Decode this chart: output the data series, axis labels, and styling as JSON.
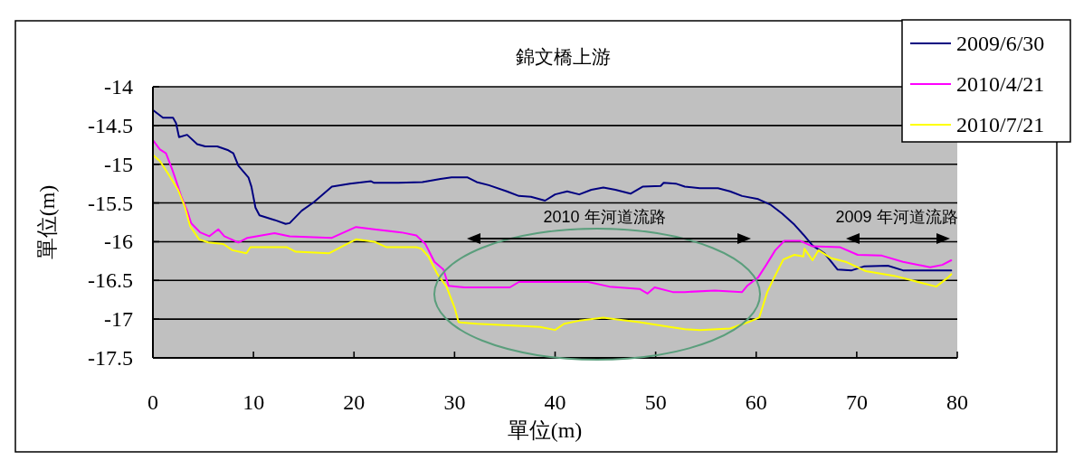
{
  "chart_data": {
    "type": "line",
    "title": "錦文橋上游",
    "xlabel": "單位(m)",
    "ylabel": "單位(m)",
    "xlim": [
      0,
      80
    ],
    "xticks": [
      0,
      10,
      20,
      30,
      40,
      50,
      60,
      70,
      80
    ],
    "ylim": [
      -17.5,
      -14
    ],
    "yticks": [
      -17.5,
      -17,
      -16.5,
      -16,
      -15.5,
      -15,
      -14.5,
      -14
    ],
    "grid": "y",
    "legend": "top right",
    "line_style": "solid",
    "series": [
      {
        "name": "2009/6/30",
        "color": "#000080",
        "x": [
          0,
          1.0,
          2.0,
          2.3,
          2.6,
          3.4,
          4.4,
          5.2,
          6.4,
          7.5,
          8.0,
          8.5,
          9.5,
          9.8,
          10.2,
          10.6,
          12.1,
          13.2,
          13.6,
          14.8,
          16.0,
          17.8,
          19.6,
          21.7,
          22.0,
          24.4,
          26.8,
          28.6,
          29.7,
          31.3,
          32.2,
          33.4,
          35.2,
          36.4,
          37.6,
          39.0,
          40.0,
          41.2,
          42.4,
          43.6,
          44.8,
          46.0,
          47.5,
          48.7,
          50.5,
          50.8,
          52.0,
          52.9,
          54.4,
          56.2,
          57.4,
          58.6,
          60.2,
          61.4,
          62.6,
          63.8,
          64.7,
          65.6,
          66.8,
          68.1,
          69.5,
          70.7,
          73.1,
          74.6,
          79.4
        ],
        "values": [
          -14.3,
          -14.4,
          -14.4,
          -14.47,
          -14.65,
          -14.62,
          -14.74,
          -14.77,
          -14.77,
          -14.82,
          -14.86,
          -15.02,
          -15.17,
          -15.29,
          -15.56,
          -15.66,
          -15.72,
          -15.77,
          -15.76,
          -15.6,
          -15.49,
          -15.29,
          -15.25,
          -15.22,
          -15.24,
          -15.24,
          -15.23,
          -15.19,
          -15.17,
          -15.17,
          -15.23,
          -15.27,
          -15.35,
          -15.41,
          -15.42,
          -15.47,
          -15.39,
          -15.35,
          -15.39,
          -15.33,
          -15.3,
          -15.33,
          -15.38,
          -15.29,
          -15.28,
          -15.24,
          -15.25,
          -15.29,
          -15.31,
          -15.31,
          -15.35,
          -15.41,
          -15.45,
          -15.52,
          -15.64,
          -15.78,
          -15.91,
          -16.05,
          -16.15,
          -16.36,
          -16.37,
          -16.32,
          -16.31,
          -16.37,
          -16.37
        ]
      },
      {
        "name": "2010/4/21",
        "color": "#ff00ff",
        "x": [
          0,
          0.7,
          1.3,
          1.9,
          2.3,
          2.8,
          3.4,
          3.8,
          4.7,
          5.6,
          6.5,
          7.1,
          8.5,
          9.4,
          12.1,
          13.6,
          17.8,
          19.0,
          20.2,
          22.0,
          24.7,
          26.2,
          27.1,
          28.0,
          28.9,
          29.4,
          31.0,
          35.5,
          36.4,
          43.3,
          45.4,
          48.4,
          49.2,
          49.9,
          51.7,
          52.9,
          55.9,
          58.6,
          59.1,
          60.2,
          61.0,
          61.9,
          62.8,
          64.4,
          65.6,
          68.3,
          70.1,
          72.5,
          74.6,
          77.3,
          78.5,
          79.4
        ],
        "values": [
          -14.69,
          -14.81,
          -14.86,
          -15.06,
          -15.21,
          -15.41,
          -15.6,
          -15.76,
          -15.88,
          -15.93,
          -15.84,
          -15.93,
          -16.01,
          -15.95,
          -15.89,
          -15.93,
          -15.95,
          -15.88,
          -15.81,
          -15.84,
          -15.88,
          -15.92,
          -16.03,
          -16.26,
          -16.36,
          -16.57,
          -16.59,
          -16.59,
          -16.52,
          -16.52,
          -16.58,
          -16.61,
          -16.67,
          -16.59,
          -16.65,
          -16.65,
          -16.63,
          -16.65,
          -16.57,
          -16.46,
          -16.3,
          -16.11,
          -15.99,
          -15.99,
          -16.06,
          -16.07,
          -16.17,
          -16.18,
          -16.26,
          -16.33,
          -16.3,
          -16.24
        ]
      },
      {
        "name": "2010/7/21",
        "color": "#ffff00",
        "x": [
          0,
          0.7,
          1.6,
          2.5,
          3.2,
          3.7,
          4.6,
          5.5,
          7.0,
          7.9,
          9.3,
          9.7,
          13.3,
          14.2,
          17.5,
          18.7,
          20.2,
          22.0,
          23.2,
          26.2,
          26.7,
          27.4,
          28.3,
          29.2,
          30.0,
          30.4,
          32.2,
          38.5,
          40.0,
          40.9,
          42.4,
          44.8,
          46.0,
          48.4,
          51.4,
          52.9,
          54.4,
          57.4,
          59.2,
          60.3,
          61.1,
          61.8,
          62.7,
          63.8,
          64.7,
          64.8,
          65.6,
          66.2,
          67.4,
          68.9,
          70.9,
          73.7,
          75.5,
          77.9,
          79.1,
          79.4
        ],
        "values": [
          -14.88,
          -14.96,
          -15.14,
          -15.33,
          -15.56,
          -15.8,
          -15.97,
          -16.01,
          -16.03,
          -16.11,
          -16.15,
          -16.07,
          -16.07,
          -16.13,
          -16.15,
          -16.07,
          -15.97,
          -16.0,
          -16.07,
          -16.07,
          -16.09,
          -16.19,
          -16.42,
          -16.58,
          -16.85,
          -17.04,
          -17.06,
          -17.1,
          -17.14,
          -17.06,
          -17.02,
          -16.98,
          -17.0,
          -17.04,
          -17.1,
          -17.13,
          -17.14,
          -17.12,
          -17.04,
          -16.98,
          -16.65,
          -16.46,
          -16.23,
          -16.17,
          -16.19,
          -16.09,
          -16.24,
          -16.11,
          -16.21,
          -16.26,
          -16.38,
          -16.44,
          -16.5,
          -16.58,
          -16.46,
          -16.42
        ]
      }
    ],
    "annotations": [
      "2010 年河道流路",
      "2009 年河道流路"
    ]
  }
}
